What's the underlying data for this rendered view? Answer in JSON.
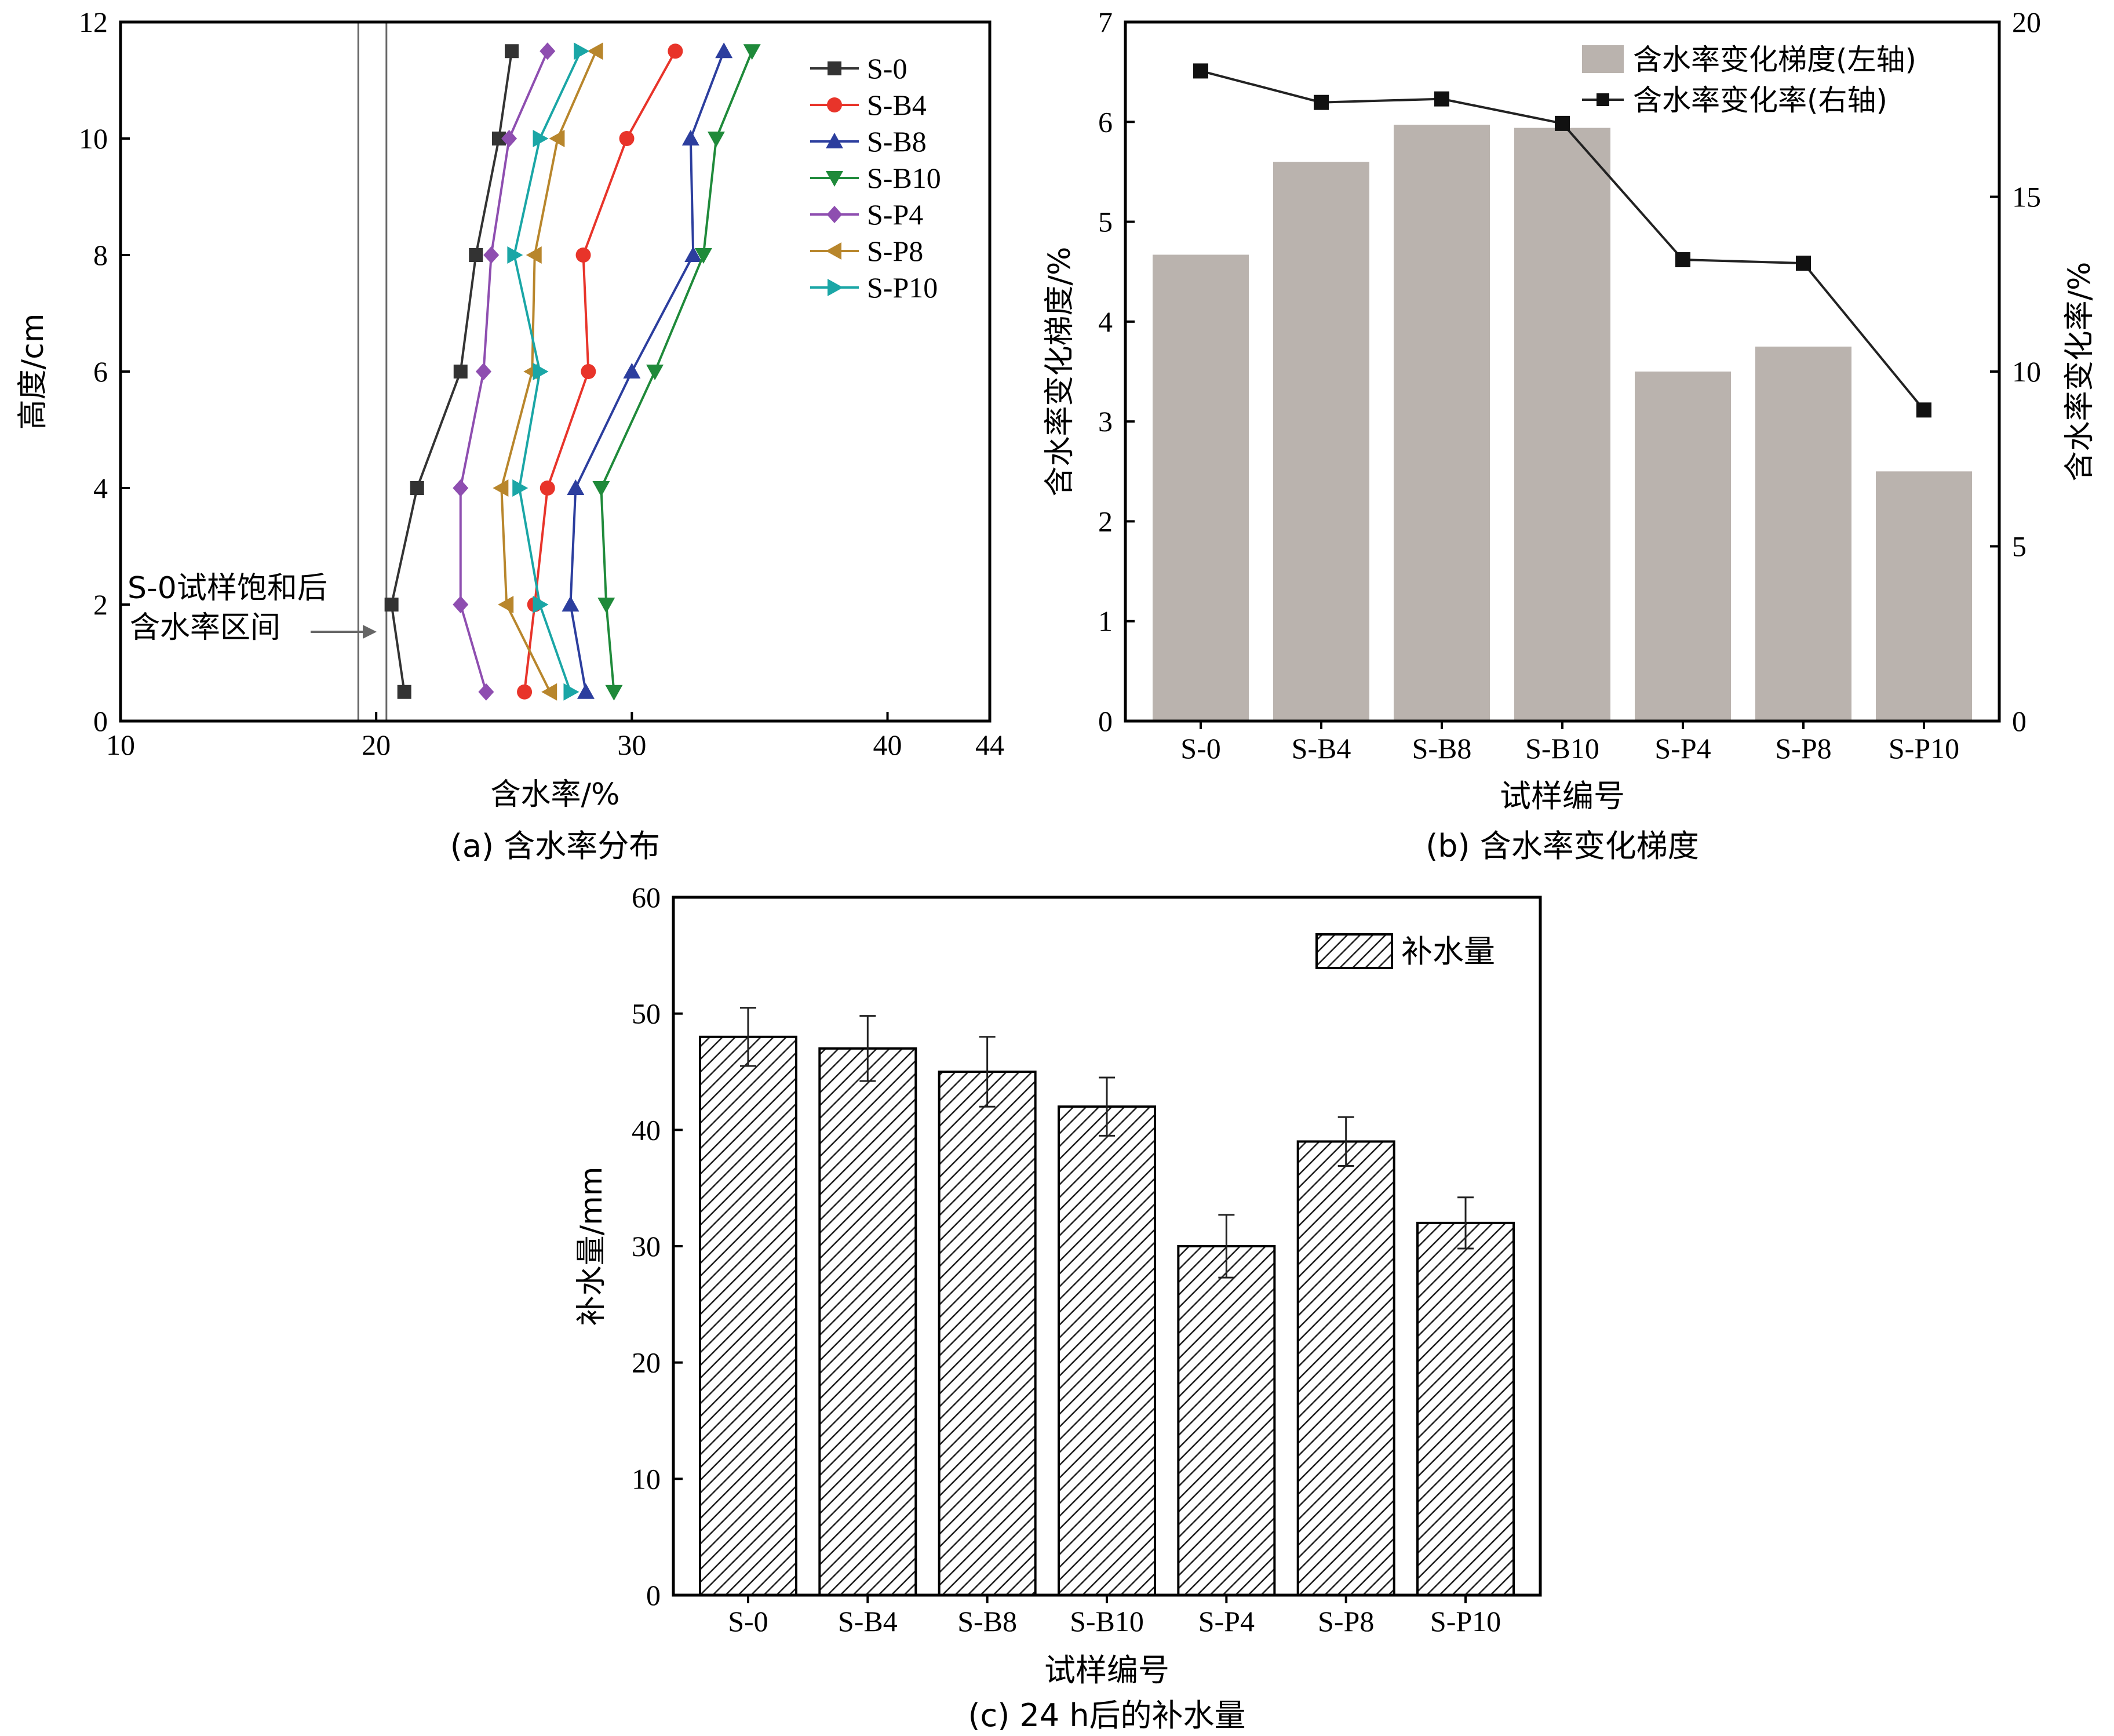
{
  "chart_data": [
    {
      "type": "line",
      "caption": "(a) 含水率分布",
      "xlabel": "含水率/%",
      "ylabel": "高度/cm",
      "xlim": [
        10,
        44
      ],
      "ylim": [
        0,
        12
      ],
      "xticks": [
        "10",
        "20",
        "30",
        "40",
        "44"
      ],
      "yticks": [
        "0",
        "2",
        "4",
        "6",
        "8",
        "10",
        "12"
      ],
      "legend_position": "top-right",
      "annotation": {
        "line1": "S-0试样饱和后",
        "line2": "含水率区间",
        "range": [
          19.3,
          20.4
        ]
      },
      "y": [
        0.5,
        2,
        4,
        6,
        8,
        10,
        11.5
      ],
      "series": [
        {
          "name": "S-0",
          "color": "#333333",
          "marker": "square",
          "values": [
            21.1,
            20.6,
            21.6,
            23.3,
            23.9,
            24.8,
            25.3
          ]
        },
        {
          "name": "S-B4",
          "color": "#e8342a",
          "marker": "circle",
          "values": [
            25.8,
            26.2,
            26.7,
            28.3,
            28.1,
            29.8,
            31.7
          ]
        },
        {
          "name": "S-B8",
          "color": "#2c3e9e",
          "marker": "triangle-up",
          "values": [
            28.2,
            27.6,
            27.8,
            30.0,
            32.4,
            32.3,
            33.6
          ]
        },
        {
          "name": "S-B10",
          "color": "#1f8a3a",
          "marker": "triangle-down",
          "values": [
            29.3,
            29.0,
            28.8,
            30.9,
            32.8,
            33.3,
            34.7
          ]
        },
        {
          "name": "S-P4",
          "color": "#8e4eb0",
          "marker": "diamond",
          "values": [
            24.3,
            23.3,
            23.3,
            24.2,
            24.5,
            25.2,
            26.7
          ]
        },
        {
          "name": "S-P8",
          "color": "#b8862c",
          "marker": "triangle-left",
          "values": [
            26.8,
            25.1,
            24.9,
            26.1,
            26.2,
            27.1,
            28.6
          ]
        },
        {
          "name": "S-P10",
          "color": "#1aa6a6",
          "marker": "triangle-right",
          "values": [
            27.6,
            26.4,
            25.6,
            26.4,
            25.4,
            26.4,
            28.0
          ]
        }
      ]
    },
    {
      "type": "bar",
      "caption": "(b) 含水率变化梯度",
      "xlabel": "试样编号",
      "ylabel": "含水率变化梯度/%",
      "ylabel_right": "含水率变化率/%",
      "categories": [
        "S-0",
        "S-B4",
        "S-B8",
        "S-B10",
        "S-P4",
        "S-P8",
        "S-P10"
      ],
      "ylim": [
        0,
        7
      ],
      "ylim_right": [
        0,
        20
      ],
      "yticks": [
        "0",
        "1",
        "2",
        "3",
        "4",
        "5",
        "6",
        "7"
      ],
      "yticks_right": [
        "0",
        "5",
        "10",
        "15",
        "20"
      ],
      "legend_position": "top-right",
      "series": [
        {
          "name": "含水率变化梯度(左轴)",
          "type": "bar",
          "color": "#bab3ae",
          "values": [
            4.67,
            5.6,
            5.97,
            5.94,
            3.5,
            3.75,
            2.5
          ]
        },
        {
          "name": "含水率变化率(右轴)",
          "type": "line",
          "color": "#222222",
          "values": [
            18.6,
            17.7,
            17.8,
            17.1,
            13.2,
            13.1,
            8.9
          ]
        }
      ]
    },
    {
      "type": "bar",
      "caption": "(c) 24 h后的补水量",
      "xlabel": "试样编号",
      "ylabel": "补水量/mm",
      "categories": [
        "S-0",
        "S-B4",
        "S-B8",
        "S-B10",
        "S-P4",
        "S-P8",
        "S-P10"
      ],
      "ylim": [
        0,
        60
      ],
      "yticks": [
        "0",
        "10",
        "20",
        "30",
        "40",
        "50",
        "60"
      ],
      "legend_position": "top-right",
      "series": [
        {
          "name": "补水量",
          "pattern": "hatched",
          "values": [
            48,
            47,
            45,
            42,
            30,
            39,
            32
          ],
          "errors": [
            2.5,
            2.8,
            3.0,
            2.5,
            2.7,
            2.1,
            2.2
          ]
        }
      ]
    }
  ]
}
